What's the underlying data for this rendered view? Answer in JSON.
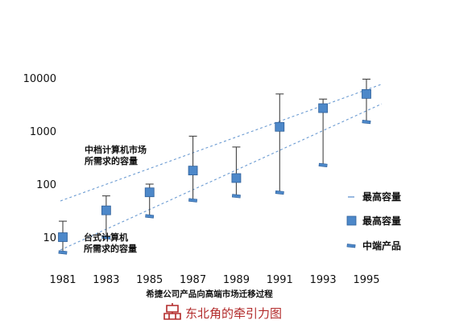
{
  "chart_data": {
    "type": "scatter",
    "y_scale": "log",
    "ylim": [
      5,
      10000
    ],
    "x": [
      1981,
      1983,
      1985,
      1987,
      1989,
      1991,
      1993,
      1995
    ],
    "y_tick_labels": [
      "10",
      "100",
      "1000",
      "10000"
    ],
    "y_ticks": [
      10,
      100,
      1000,
      10000
    ],
    "xlabel": "希捷公司产品向高端市场迁移过程",
    "grid": false,
    "legend_position": "right",
    "points": [
      {
        "x": 1981,
        "high": 20,
        "mid": 10,
        "low": 5.2
      },
      {
        "x": 1983,
        "high": 60,
        "mid": 32,
        "low": 10
      },
      {
        "x": 1985,
        "high": 100,
        "mid": 70,
        "low": 25
      },
      {
        "x": 1987,
        "high": 800,
        "mid": 180,
        "low": 50
      },
      {
        "x": 1989,
        "high": 500,
        "mid": 130,
        "low": 60
      },
      {
        "x": 1991,
        "high": 5000,
        "mid": 1200,
        "low": 70
      },
      {
        "x": 1993,
        "high": 4000,
        "mid": 2700,
        "low": 230
      },
      {
        "x": 1995,
        "high": 9500,
        "mid": 5000,
        "low": 1500
      }
    ],
    "trend_lines": [
      {
        "from": [
          1981,
          50
        ],
        "to": [
          1995,
          6000
        ]
      },
      {
        "from": [
          1981,
          6
        ],
        "to": [
          1995,
          2400
        ]
      }
    ],
    "annotations": [
      {
        "lines": [
          "中档计算机市场",
          "所需求的容量"
        ]
      },
      {
        "lines": [
          "台式计算机",
          "所需求的容量"
        ]
      }
    ],
    "legend": [
      {
        "label": "最高容量",
        "marker": "dash"
      },
      {
        "label": "最高容量",
        "marker": "square"
      },
      {
        "label": "中端产品",
        "marker": "low-marker"
      }
    ],
    "colors": {
      "square_fill": "#4d88c9",
      "square_stroke": "#2e5f99",
      "trend": "#6b9bd2",
      "whisker": "#444444",
      "brand": "#b22a2a"
    }
  },
  "brand": {
    "text": "东北角的牵引力图"
  }
}
